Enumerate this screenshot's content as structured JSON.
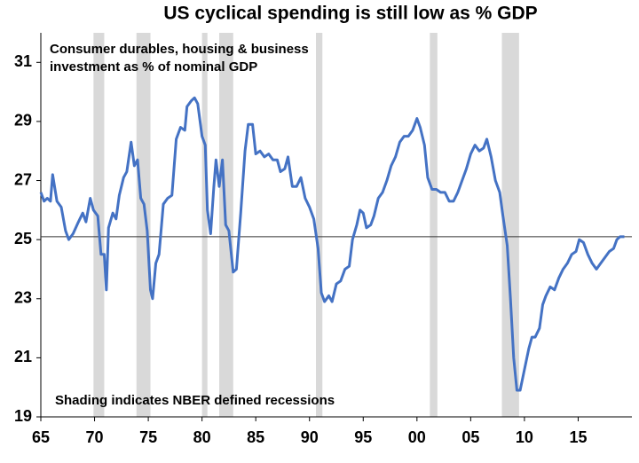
{
  "chart_data": {
    "type": "line",
    "title": "US cyclical spending is still low as % GDP",
    "annotations": [
      "Consumer durables, housing & business",
      "investment as % of nominal GDP",
      "Shading indicates NBER defined recessions"
    ],
    "xlim": [
      1965,
      2020
    ],
    "xticks": [
      {
        "value": 1965,
        "label": "65"
      },
      {
        "value": 1970,
        "label": "70"
      },
      {
        "value": 1975,
        "label": "75"
      },
      {
        "value": 1980,
        "label": "80"
      },
      {
        "value": 1985,
        "label": "85"
      },
      {
        "value": 1990,
        "label": "90"
      },
      {
        "value": 1995,
        "label": "95"
      },
      {
        "value": 2000,
        "label": "00"
      },
      {
        "value": 2005,
        "label": "05"
      },
      {
        "value": 2010,
        "label": "10"
      },
      {
        "value": 2015,
        "label": "15"
      }
    ],
    "ylim": [
      19,
      32
    ],
    "yticks": [
      19,
      21,
      23,
      25,
      27,
      29,
      31
    ],
    "reference_line": 25.1,
    "recession_color": "#d9d9d9",
    "recessions": [
      [
        1969.9,
        1970.9
      ],
      [
        1973.9,
        1975.2
      ],
      [
        1980.0,
        1980.5
      ],
      [
        1981.6,
        1982.9
      ],
      [
        1990.6,
        1991.2
      ],
      [
        2001.2,
        2001.9
      ],
      [
        2007.9,
        2009.5
      ]
    ],
    "series": [
      {
        "color": "#4472c4",
        "x": [
          1965.0,
          1965.3,
          1965.6,
          1965.9,
          1966.1,
          1966.5,
          1966.9,
          1967.3,
          1967.6,
          1968.0,
          1968.5,
          1968.9,
          1969.2,
          1969.6,
          1969.9,
          1970.3,
          1970.6,
          1970.9,
          1971.1,
          1971.3,
          1971.7,
          1972.0,
          1972.3,
          1972.7,
          1973.0,
          1973.4,
          1973.7,
          1974.0,
          1974.3,
          1974.6,
          1974.9,
          1975.2,
          1975.4,
          1975.7,
          1976.0,
          1976.4,
          1976.8,
          1977.2,
          1977.6,
          1978.0,
          1978.4,
          1978.6,
          1979.0,
          1979.3,
          1979.6,
          1980.0,
          1980.3,
          1980.5,
          1980.8,
          1981.1,
          1981.3,
          1981.6,
          1981.9,
          1982.2,
          1982.5,
          1982.9,
          1983.2,
          1983.6,
          1984.0,
          1984.3,
          1984.7,
          1985.0,
          1985.4,
          1985.8,
          1986.2,
          1986.6,
          1987.0,
          1987.3,
          1987.7,
          1988.0,
          1988.4,
          1988.8,
          1989.2,
          1989.6,
          1990.0,
          1990.4,
          1990.8,
          1991.1,
          1991.4,
          1991.8,
          1992.1,
          1992.5,
          1992.9,
          1993.3,
          1993.7,
          1994.0,
          1994.4,
          1994.7,
          1995.0,
          1995.3,
          1995.7,
          1996.0,
          1996.4,
          1996.8,
          1997.2,
          1997.6,
          1998.0,
          1998.4,
          1998.8,
          1999.2,
          1999.6,
          2000.0,
          2000.3,
          2000.7,
          2001.0,
          2001.4,
          2001.8,
          2002.2,
          2002.6,
          2003.0,
          2003.4,
          2003.8,
          2004.2,
          2004.6,
          2005.0,
          2005.4,
          2005.8,
          2006.2,
          2006.5,
          2006.9,
          2007.3,
          2007.7,
          2008.0,
          2008.4,
          2008.7,
          2009.0,
          2009.3,
          2009.6,
          2010.0,
          2010.4,
          2010.7,
          2011.0,
          2011.4,
          2011.7,
          2012.0,
          2012.4,
          2012.8,
          2013.2,
          2013.6,
          2014.0,
          2014.4,
          2014.8,
          2015.1,
          2015.5,
          2015.9,
          2016.3,
          2016.7,
          2017.1,
          2017.5,
          2017.9,
          2018.3,
          2018.6,
          2018.9,
          2019.3
        ],
        "values": [
          26.6,
          26.3,
          26.4,
          26.3,
          27.2,
          26.3,
          26.1,
          25.3,
          25.0,
          25.2,
          25.6,
          25.9,
          25.6,
          26.4,
          26.0,
          25.8,
          24.5,
          24.5,
          23.3,
          25.4,
          25.9,
          25.7,
          26.5,
          27.1,
          27.3,
          28.3,
          27.5,
          27.7,
          26.4,
          26.2,
          25.3,
          23.3,
          23.0,
          24.2,
          24.5,
          26.2,
          26.4,
          26.5,
          28.4,
          28.8,
          28.7,
          29.5,
          29.7,
          29.8,
          29.6,
          28.5,
          28.2,
          26.0,
          25.2,
          26.8,
          27.7,
          26.8,
          27.7,
          25.5,
          25.3,
          23.9,
          24.0,
          25.9,
          28.0,
          28.9,
          28.9,
          27.9,
          28.0,
          27.8,
          27.9,
          27.7,
          27.7,
          27.3,
          27.4,
          27.8,
          26.8,
          26.8,
          27.1,
          26.4,
          26.1,
          25.7,
          24.7,
          23.2,
          22.9,
          23.1,
          22.9,
          23.5,
          23.6,
          24.0,
          24.1,
          25.0,
          25.5,
          26.0,
          25.9,
          25.4,
          25.5,
          25.8,
          26.4,
          26.6,
          27.0,
          27.5,
          27.8,
          28.3,
          28.5,
          28.5,
          28.7,
          29.1,
          28.8,
          28.2,
          27.1,
          26.7,
          26.7,
          26.6,
          26.6,
          26.3,
          26.3,
          26.6,
          27.0,
          27.4,
          27.9,
          28.2,
          28.0,
          28.1,
          28.4,
          27.8,
          27.0,
          26.6,
          25.8,
          24.8,
          23.0,
          21.0,
          19.9,
          19.9,
          20.6,
          21.3,
          21.7,
          21.7,
          22.0,
          22.8,
          23.1,
          23.4,
          23.3,
          23.7,
          24.0,
          24.2,
          24.5,
          24.6,
          25.0,
          24.9,
          24.5,
          24.2,
          24.0,
          24.2,
          24.4,
          24.6,
          24.7,
          25.0,
          25.1,
          25.1
        ]
      }
    ]
  }
}
